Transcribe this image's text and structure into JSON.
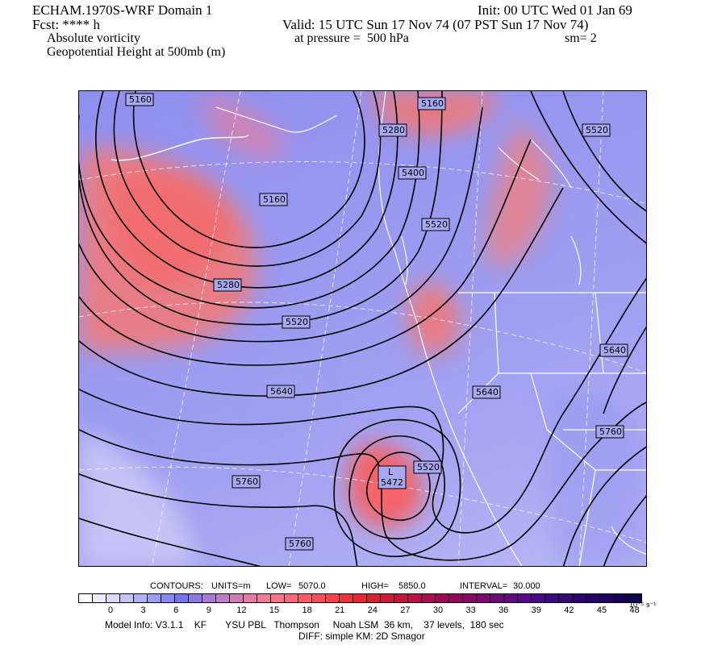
{
  "header": {
    "title_left": "ECHAM.1970S-WRF Domain 1",
    "fcst": "Fcst: **** h",
    "field1": "Absolute vorticity",
    "field2": "Geopotential Height at 500mb (m)",
    "init": "Init: 00 UTC Wed 01 Jan 69",
    "valid": "Valid: 15 UTC Sun 17 Nov 74 (07 PST Sun 17 Nov 74)",
    "pressure": "at pressure =  500 hPa",
    "sm": "sm= 2"
  },
  "contour_labels": [
    "5160",
    "5160",
    "5280",
    "5520",
    "5400",
    "5160",
    "5520",
    "5280",
    "5520",
    "5640",
    "5640",
    "5640",
    "5760",
    "5520",
    "5760",
    "5760"
  ],
  "low_center": {
    "symbol": "L",
    "value": "5472"
  },
  "footer": {
    "contours_line": {
      "label": "CONTOURS:",
      "units": "UNITS=m",
      "low_label": "LOW=",
      "low": "5070.0",
      "high_label": "HIGH=",
      "high": "5850.0",
      "interval_label": "INTERVAL=",
      "interval": "30.000"
    },
    "colorbar_ticks": [
      "0",
      "3",
      "6",
      "9",
      "12",
      "15",
      "18",
      "21",
      "24",
      "27",
      "30",
      "33",
      "36",
      "39",
      "42",
      "45",
      "48"
    ],
    "colorbar_units": "10⁻⁵ s⁻¹",
    "model_info": "Model Info: V3.1.1    KF       YSU PBL   Thompson     Noah LSM  36 km,    37 levels,  180 sec",
    "diff": "DIFF: simple KM: 2D Smagor"
  },
  "colors": {
    "colorbar": [
      "#ffffff",
      "#ececfc",
      "#d8d8f8",
      "#c4c4f6",
      "#b0b0f4",
      "#9c9cf2",
      "#8888f0",
      "#7474ee",
      "#8c7ae4",
      "#a87ad8",
      "#c07ac8",
      "#d47ab8",
      "#e47aa8",
      "#f07a98",
      "#f87488",
      "#fc6878",
      "#fc5a68",
      "#fc4c58",
      "#f84048",
      "#f03038",
      "#e82830",
      "#dc2030",
      "#d01838",
      "#c41440",
      "#b81048",
      "#ac0c50",
      "#a00858",
      "#940860",
      "#880868",
      "#7c0870",
      "#700878",
      "#640880",
      "#580888",
      "#4c0888",
      "#400880",
      "#380878",
      "#300070",
      "#280068",
      "#200060",
      "#180058",
      "#100050"
    ]
  }
}
